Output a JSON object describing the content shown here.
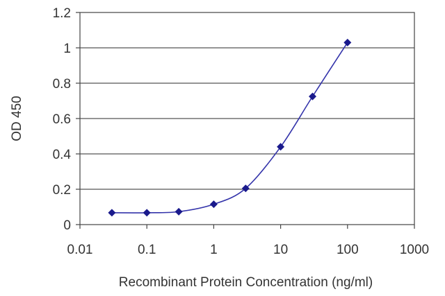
{
  "chart_data": {
    "type": "scatter",
    "xscale": "log",
    "xlabel": "Recombinant Protein Concentration (ng/ml)",
    "ylabel": "OD 450",
    "xlim": [
      0.01,
      1000
    ],
    "ylim": [
      0,
      1.2
    ],
    "xticks": [
      0.01,
      0.1,
      1,
      10,
      100,
      1000
    ],
    "xtick_labels": [
      "0.01",
      "0.1",
      "1",
      "10",
      "100",
      "1000"
    ],
    "yticks": [
      0,
      0.2,
      0.4,
      0.6,
      0.8,
      1,
      1.2
    ],
    "ytick_labels": [
      "0",
      "0.2",
      "0.4",
      "0.6",
      "0.8",
      "1",
      "1.2"
    ],
    "grid": "horizontal",
    "legend": "none",
    "series": [
      {
        "x": [
          0.03,
          0.1,
          0.3,
          1,
          3,
          10,
          30,
          100
        ],
        "y": [
          0.067,
          0.067,
          0.073,
          0.115,
          0.205,
          0.44,
          0.725,
          1.03
        ],
        "color": "#1a1a8c",
        "marker": "diamond",
        "fit_line": true
      }
    ]
  }
}
